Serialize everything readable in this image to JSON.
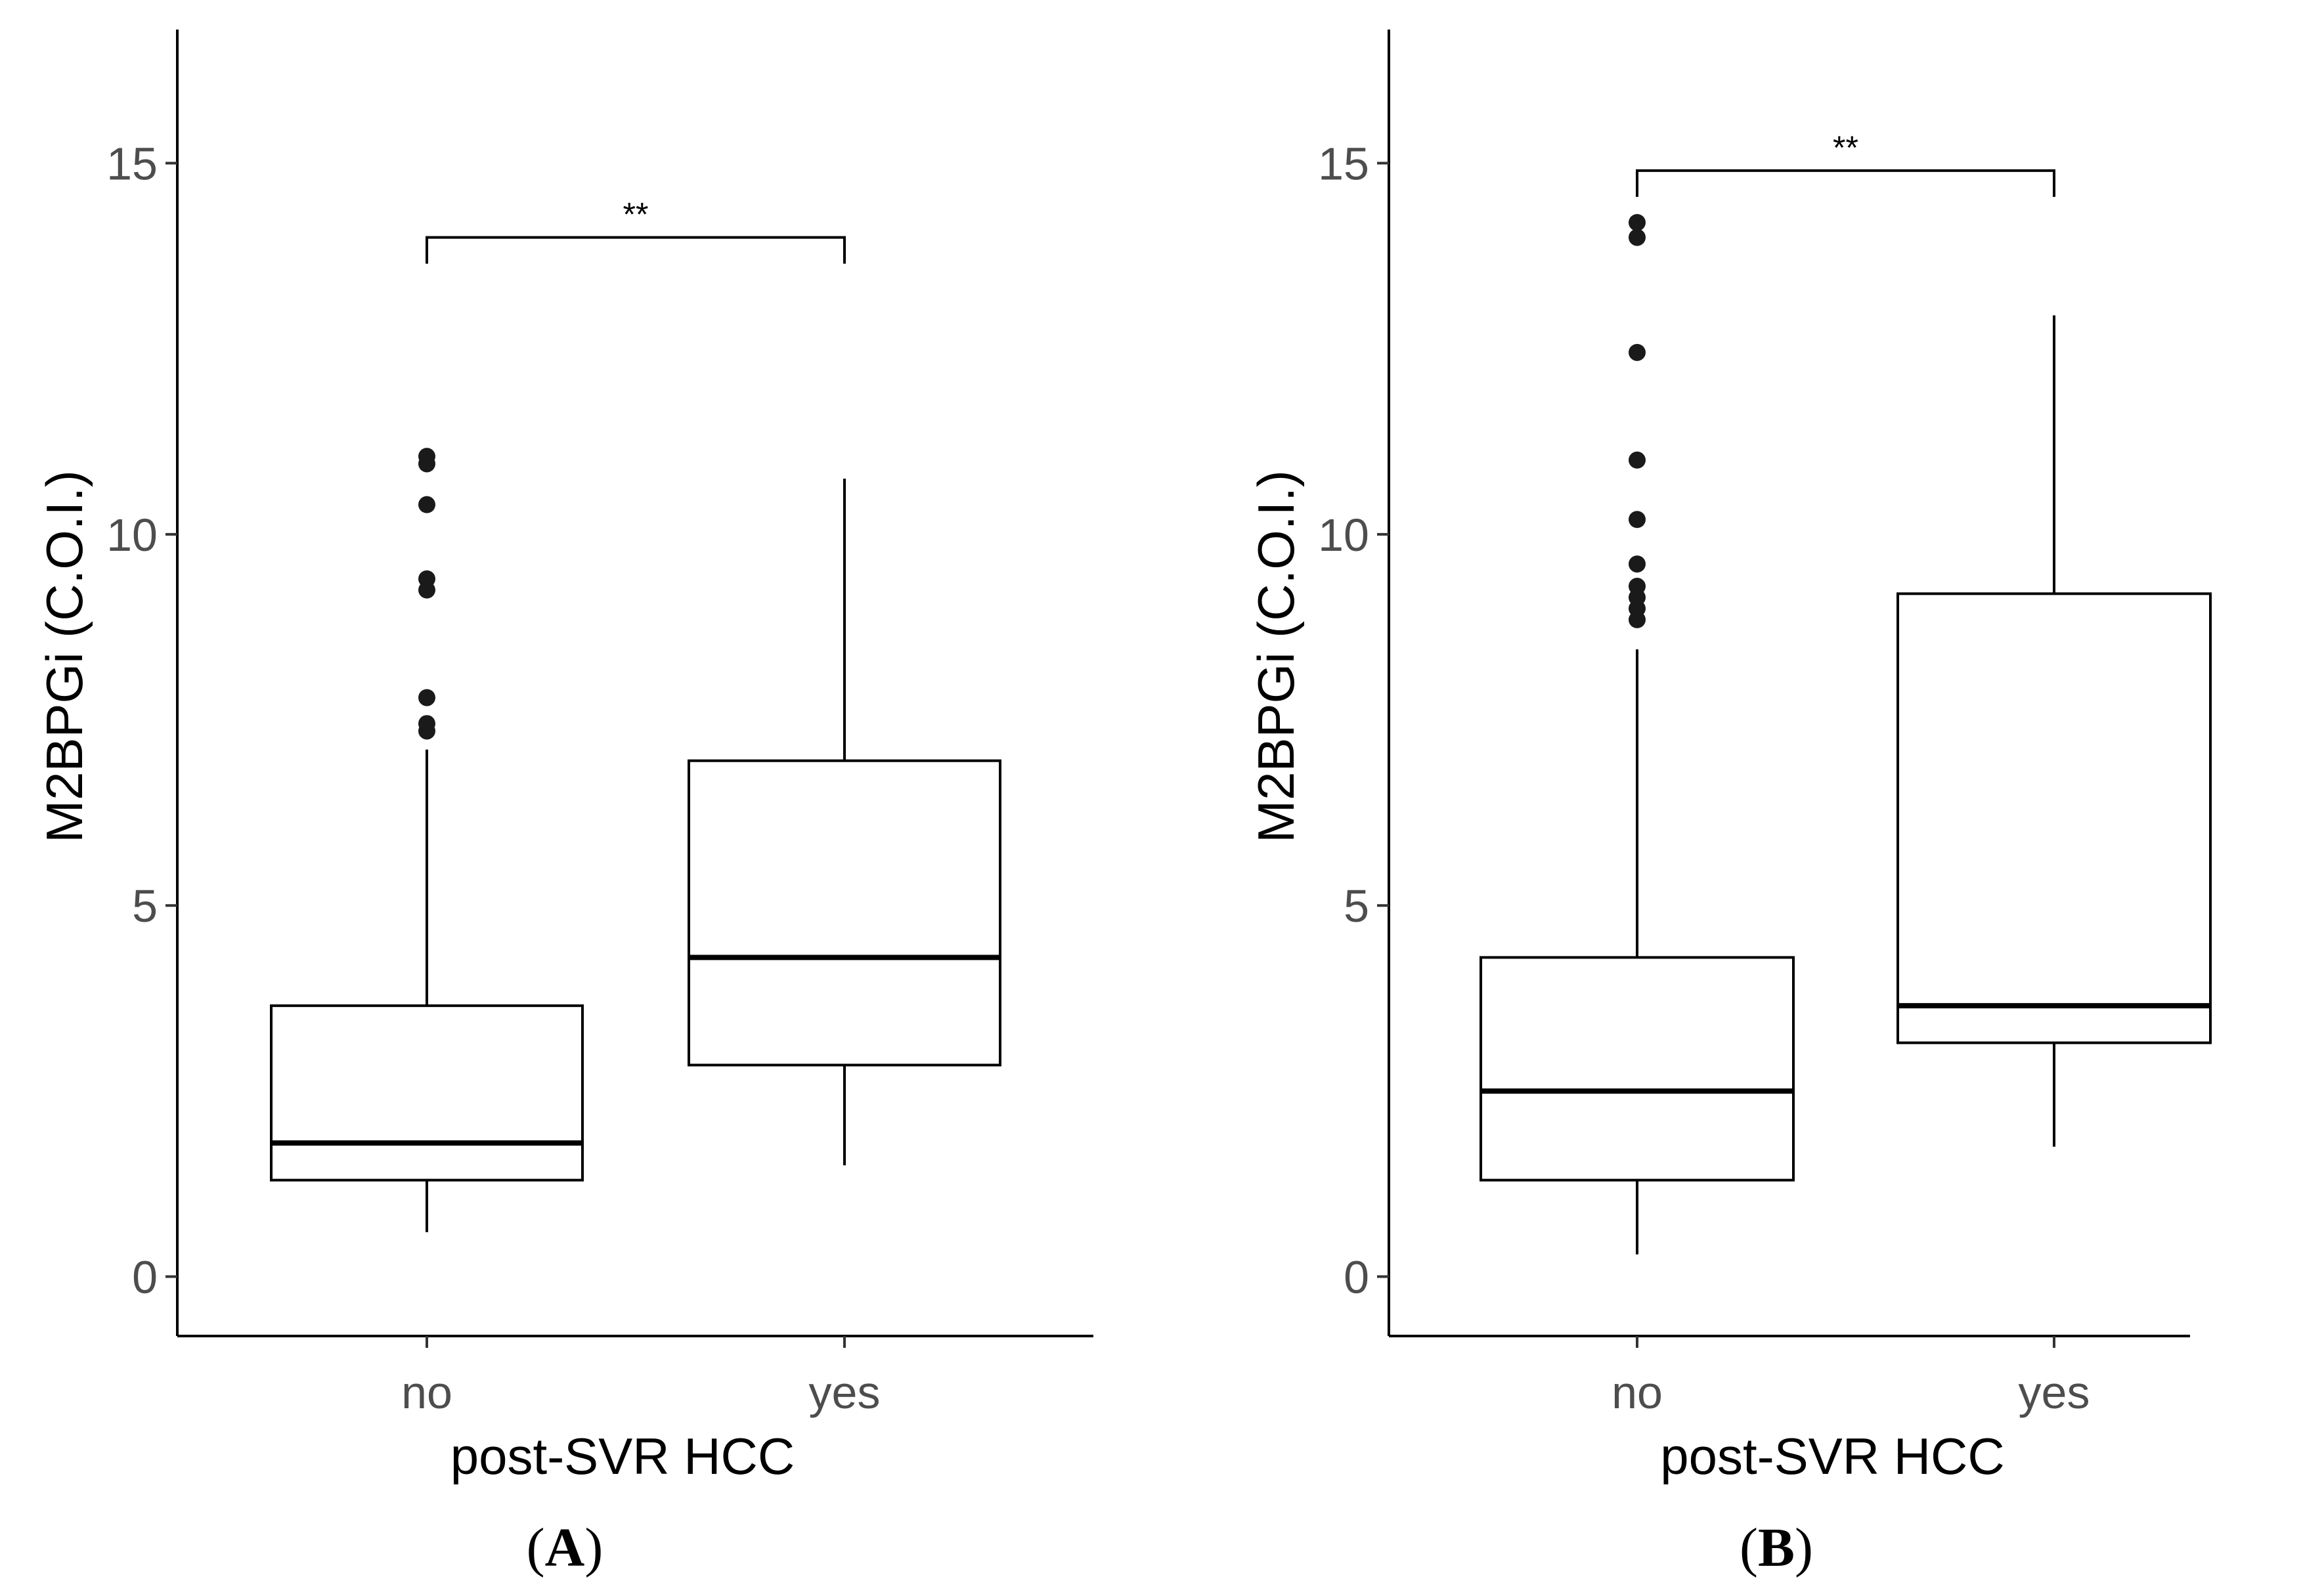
{
  "chart_data": [
    {
      "type": "box",
      "panel": "A",
      "caption_label": "A",
      "xlabel": "post-SVR HCC",
      "ylabel": "M2BPGi (C.O.I.)",
      "yticks": [
        0,
        5,
        10,
        15
      ],
      "ylim": [
        -0.8,
        16.8
      ],
      "categories": [
        "no",
        "yes"
      ],
      "boxes": [
        {
          "category": "no",
          "whisker_low": 0.6,
          "q1": 1.3,
          "median": 1.8,
          "q3": 3.65,
          "whisker_high": 7.1,
          "outliers": [
            7.35,
            7.45,
            7.8,
            9.25,
            9.4,
            10.4,
            10.95,
            11.05
          ]
        },
        {
          "category": "yes",
          "whisker_low": 1.5,
          "q1": 2.85,
          "median": 4.3,
          "q3": 6.95,
          "whisker_high": 10.75,
          "outliers": []
        }
      ],
      "significance": {
        "label": "**",
        "y": 14.0
      }
    },
    {
      "type": "box",
      "panel": "B",
      "caption_label": "B",
      "xlabel": "post-SVR HCC",
      "ylabel": "M2BPGi (C.O.I.)",
      "yticks": [
        0,
        5,
        10,
        15
      ],
      "ylim": [
        -0.8,
        16.8
      ],
      "categories": [
        "no",
        "yes"
      ],
      "boxes": [
        {
          "category": "no",
          "whisker_low": 0.3,
          "q1": 1.3,
          "median": 2.5,
          "q3": 4.3,
          "whisker_high": 8.45,
          "outliers": [
            8.85,
            9.0,
            9.15,
            9.3,
            9.6,
            10.2,
            11.0,
            12.45,
            14.0,
            14.2
          ]
        },
        {
          "category": "yes",
          "whisker_low": 1.75,
          "q1": 3.15,
          "median": 3.65,
          "q3": 9.2,
          "whisker_high": 12.95,
          "outliers": []
        }
      ],
      "significance": {
        "label": "**",
        "y": 14.9
      }
    }
  ]
}
